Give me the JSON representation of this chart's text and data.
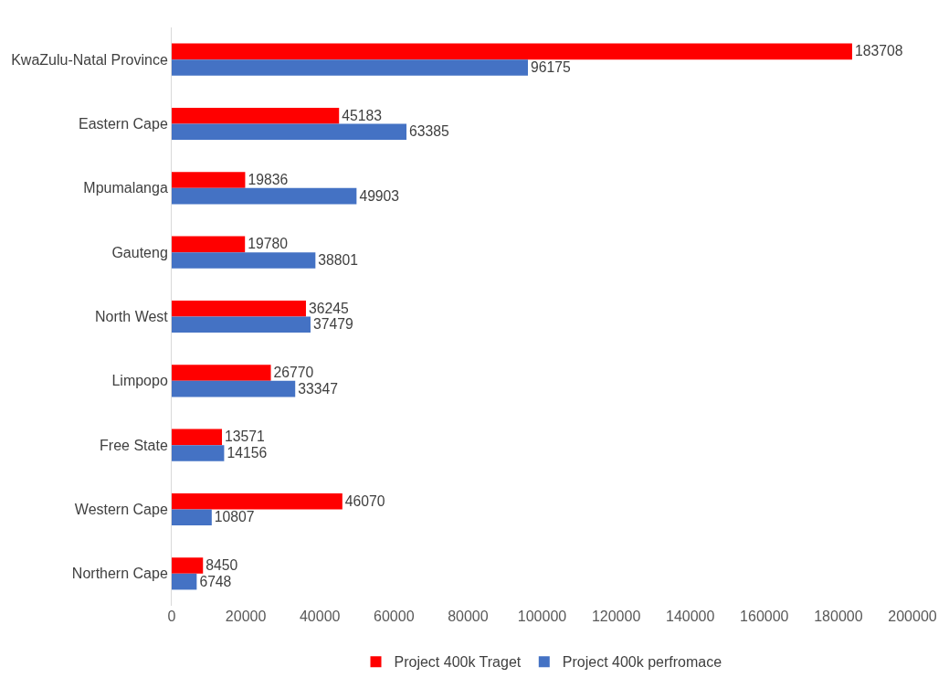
{
  "chart_data": {
    "type": "bar",
    "orientation": "horizontal",
    "categories": [
      "KwaZulu-Natal Province",
      "Eastern Cape",
      "Mpumalanga",
      "Gauteng",
      "North West",
      "Limpopo",
      "Free State",
      "Western Cape",
      "Northern Cape"
    ],
    "series": [
      {
        "name": "Project 400k Traget",
        "color": "#ff0000",
        "values": [
          183708,
          45183,
          19836,
          19780,
          36245,
          26770,
          13571,
          46070,
          8450
        ]
      },
      {
        "name": "Project 400k perfromace",
        "color": "#4472c4",
        "values": [
          96175,
          63385,
          49903,
          38801,
          37479,
          33347,
          14156,
          10807,
          6748
        ]
      }
    ],
    "xlim": [
      0,
      200000
    ],
    "xticks": [
      0,
      20000,
      40000,
      60000,
      80000,
      100000,
      120000,
      140000,
      160000,
      180000,
      200000
    ],
    "data_labels": true,
    "legend": "bottom"
  }
}
